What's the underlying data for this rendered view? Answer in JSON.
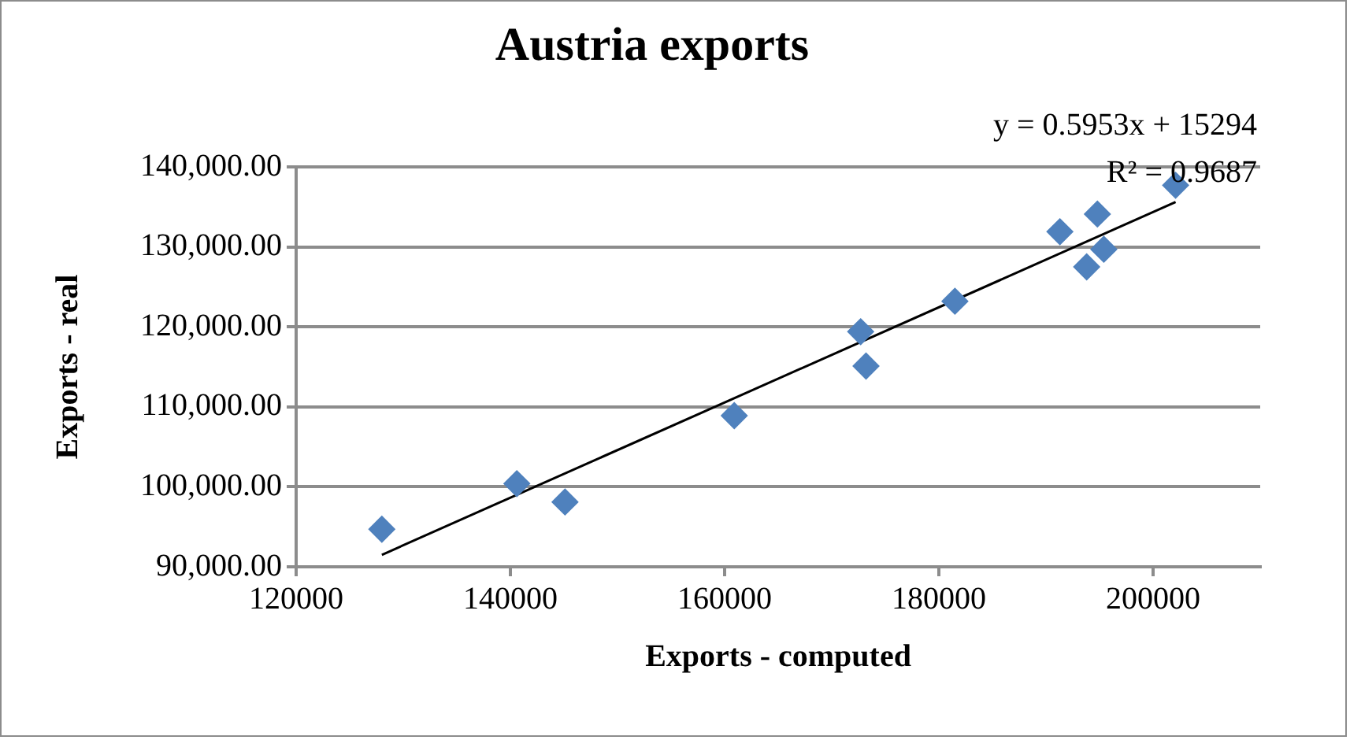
{
  "chart_data": {
    "type": "scatter",
    "title": "Austria exports",
    "xlabel": "Exports - computed",
    "ylabel": "Exports - real",
    "annotations": [
      "y = 0.5953x + 15294",
      "R² = 0.9687"
    ],
    "series": [
      {
        "type": "scatter",
        "color": "#4f81bd",
        "marker": "diamond",
        "x": [
          128000,
          140600,
          145100,
          160900,
          172700,
          173200,
          181500,
          191300,
          193800,
          194800,
          195400,
          202100
        ],
        "values": [
          94700,
          100400,
          98100,
          108900,
          119400,
          115100,
          123200,
          131900,
          127500,
          134100,
          129700,
          137700
        ]
      },
      {
        "type": "line",
        "color": "#000000",
        "marker": "none",
        "line_style": "solid",
        "x": [
          128000,
          202100
        ],
        "values": [
          91500,
          135600
        ]
      }
    ],
    "xlim": [
      120000,
      210000
    ],
    "xticks": [
      120000,
      140000,
      160000,
      180000,
      200000
    ],
    "ylim": [
      90000,
      140000
    ],
    "yticks": [
      {
        "value": 90000,
        "label": "90,000.00"
      },
      {
        "value": 100000,
        "label": "100,000.00"
      },
      {
        "value": 110000,
        "label": "110,000.00"
      },
      {
        "value": 120000,
        "label": "120,000.00"
      },
      {
        "value": 130000,
        "label": "130,000.00"
      },
      {
        "value": 140000,
        "label": "140,000.00"
      }
    ],
    "grid": "y",
    "legend": false
  }
}
